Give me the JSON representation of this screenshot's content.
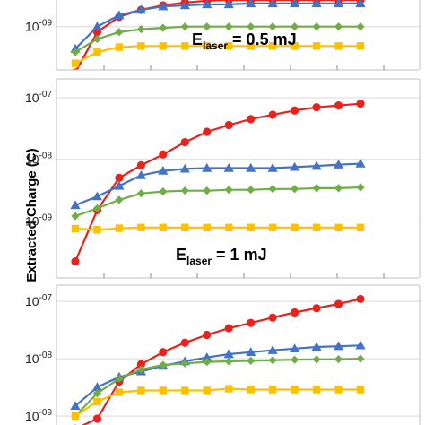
{
  "ylabel": "Extracted Charge (C)",
  "chart_data": [
    {
      "type": "line",
      "annotation": {
        "prefix": "E",
        "subscript": "laser",
        "value": " = 0.5 mJ"
      },
      "y_scale": "log",
      "ylim": [
        1e-10,
        3e-09
      ],
      "y_ticks": [
        {
          "base": "10",
          "exp": "-09",
          "value": 1e-09
        }
      ],
      "x_points": 14,
      "series": [
        {
          "color": "#e8221c",
          "marker": "circle",
          "values": [
            1.5e-10,
            8e-10,
            1.5e-09,
            2e-09,
            2.4e-09,
            2.7e-09,
            2.9e-09,
            3e-09,
            3e-09,
            3e-09,
            3e-09,
            3e-09,
            3e-09,
            3e-09
          ]
        },
        {
          "color": "#4472c4",
          "marker": "triangle",
          "values": [
            4e-10,
            1e-09,
            1.6e-09,
            2e-09,
            2.3e-09,
            2.4e-09,
            2.5e-09,
            2.5e-09,
            2.6e-09,
            2.6e-09,
            2.6e-09,
            2.6e-09,
            2.6e-09,
            2.6e-09
          ]
        },
        {
          "color": "#70ad47",
          "marker": "diamond",
          "values": [
            3.5e-10,
            6e-10,
            8e-10,
            9e-10,
            9.5e-10,
            1e-09,
            1e-09,
            1e-09,
            1e-09,
            1e-09,
            1e-09,
            1e-09,
            1e-09,
            1e-09
          ]
        },
        {
          "color": "#ffc000",
          "marker": "square",
          "values": [
            2.2e-10,
            3.5e-10,
            4.3e-10,
            4.5e-10,
            4.5e-10,
            4.5e-10,
            4.5e-10,
            4.5e-10,
            4.5e-10,
            4.5e-10,
            4.5e-10,
            4.5e-10,
            4.5e-10,
            4.5e-10
          ]
        }
      ]
    },
    {
      "type": "line",
      "annotation": {
        "prefix": "E",
        "subscript": "laser",
        "value": " = 1 mJ"
      },
      "y_scale": "log",
      "ylim": [
        1.5e-10,
        1.6e-07
      ],
      "y_ticks": [
        {
          "base": "10",
          "exp": "-07",
          "value": 1e-07
        },
        {
          "base": "10",
          "exp": "-08",
          "value": 1e-08
        },
        {
          "base": "10",
          "exp": "-09",
          "value": 1e-09
        }
      ],
      "x_points": 14,
      "series": [
        {
          "color": "#e8221c",
          "marker": "circle",
          "values": [
            2.2e-10,
            1.5e-09,
            5e-09,
            8e-09,
            1.2e-08,
            1.9e-08,
            2.8e-08,
            3.6e-08,
            4.5e-08,
            5.3e-08,
            6.2e-08,
            7e-08,
            7.5e-08,
            8e-08
          ]
        },
        {
          "color": "#4472c4",
          "marker": "triangle",
          "values": [
            1.8e-09,
            2.5e-09,
            3.7e-09,
            5.5e-09,
            6.5e-09,
            7e-09,
            7.2e-09,
            7.2e-09,
            7.2e-09,
            7.2e-09,
            7.5e-09,
            7.8e-09,
            8.2e-09,
            8.5e-09
          ]
        },
        {
          "color": "#70ad47",
          "marker": "diamond",
          "values": [
            1.2e-09,
            1.6e-09,
            2.2e-09,
            2.8e-09,
            3e-09,
            3.1e-09,
            3.1e-09,
            3.2e-09,
            3.2e-09,
            3.3e-09,
            3.3e-09,
            3.4e-09,
            3.4e-09,
            3.5e-09
          ]
        },
        {
          "color": "#ffc000",
          "marker": "square",
          "values": [
            7.5e-10,
            7.2e-10,
            7.6e-10,
            7.8e-10,
            7.8e-10,
            7.8e-10,
            7.8e-10,
            7.8e-10,
            7.8e-10,
            7.8e-10,
            7.8e-10,
            7.8e-10,
            7.8e-10,
            7.8e-10
          ]
        }
      ]
    },
    {
      "type": "line",
      "y_scale": "log",
      "ylim": [
        7e-10,
        1.6e-07
      ],
      "y_ticks": [
        {
          "base": "10",
          "exp": "-07",
          "value": 1e-07
        },
        {
          "base": "10",
          "exp": "-08",
          "value": 1e-08
        },
        {
          "base": "10",
          "exp": "-09",
          "value": 1e-09
        }
      ],
      "x_points": 14,
      "series": [
        {
          "color": "#e8221c",
          "marker": "circle",
          "values": [
            6e-10,
            9e-10,
            4e-09,
            8e-09,
            1.3e-08,
            1.9e-08,
            2.6e-08,
            3.4e-08,
            4.2e-08,
            5.2e-08,
            6.4e-08,
            7.6e-08,
            9e-08,
            1.1e-07
          ]
        },
        {
          "color": "#4472c4",
          "marker": "triangle",
          "values": [
            1.5e-09,
            3.2e-09,
            4.8e-09,
            6e-09,
            7.5e-09,
            9e-09,
            1.05e-08,
            1.2e-08,
            1.3e-08,
            1.4e-08,
            1.5e-08,
            1.6e-08,
            1.65e-08,
            1.7e-08
          ]
        },
        {
          "color": "#70ad47",
          "marker": "diamond",
          "values": [
            1e-09,
            2.5e-09,
            4.5e-09,
            6.5e-09,
            7.8e-09,
            8.3e-09,
            8.8e-09,
            9e-09,
            9.2e-09,
            9.4e-09,
            9.6e-09,
            9.7e-09,
            9.8e-09,
            1e-08
          ]
        },
        {
          "color": "#ffc000",
          "marker": "square",
          "values": [
            1e-09,
            1.8e-09,
            2.6e-09,
            2.8e-09,
            2.8e-09,
            2.8e-09,
            2.8e-09,
            3e-09,
            2.9e-09,
            2.9e-09,
            2.9e-09,
            2.9e-09,
            2.9e-09,
            2.9e-09
          ]
        }
      ]
    }
  ]
}
